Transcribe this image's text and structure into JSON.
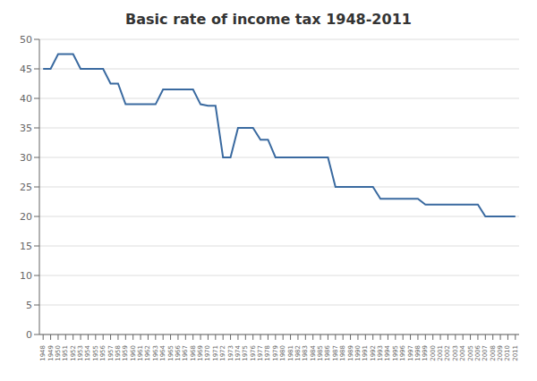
{
  "chart_data": {
    "type": "line",
    "title": "Basic rate of income tax 1948-2011",
    "x": [
      1948,
      1949,
      1950,
      1951,
      1952,
      1953,
      1954,
      1955,
      1956,
      1957,
      1958,
      1959,
      1960,
      1961,
      1962,
      1963,
      1964,
      1965,
      1966,
      1967,
      1968,
      1969,
      1970,
      1971,
      1972,
      1973,
      1974,
      1975,
      1976,
      1977,
      1978,
      1979,
      1980,
      1981,
      1982,
      1983,
      1984,
      1985,
      1986,
      1987,
      1988,
      1989,
      1990,
      1991,
      1992,
      1993,
      1994,
      1995,
      1996,
      1997,
      1998,
      1999,
      2000,
      2001,
      2002,
      2003,
      2004,
      2005,
      2006,
      2007,
      2008,
      2009,
      2010,
      2011
    ],
    "values": [
      45,
      45,
      47.5,
      47.5,
      47.5,
      45,
      45,
      45,
      45,
      42.5,
      42.5,
      39,
      39,
      39,
      39,
      39,
      41.5,
      41.5,
      41.5,
      41.5,
      41.5,
      39,
      38.75,
      38.75,
      30,
      30,
      35,
      35,
      35,
      33,
      33,
      30,
      30,
      30,
      30,
      30,
      30,
      30,
      30,
      25,
      25,
      25,
      25,
      25,
      25,
      23,
      23,
      23,
      23,
      23,
      23,
      22,
      22,
      22,
      22,
      22,
      22,
      22,
      22,
      20,
      20,
      20,
      20,
      20
    ],
    "color": "#3A6AA0",
    "xlim": [
      1947.5,
      2011.5
    ],
    "xticks": [
      1948,
      1949,
      1950,
      1951,
      1952,
      1953,
      1954,
      1955,
      1956,
      1957,
      1958,
      1959,
      1960,
      1961,
      1962,
      1963,
      1964,
      1965,
      1966,
      1967,
      1968,
      1969,
      1970,
      1971,
      1972,
      1973,
      1974,
      1975,
      1976,
      1977,
      1978,
      1979,
      1980,
      1981,
      1982,
      1983,
      1984,
      1985,
      1986,
      1987,
      1988,
      1989,
      1990,
      1991,
      1992,
      1993,
      1994,
      1995,
      1996,
      1997,
      1998,
      1999,
      2000,
      2001,
      2002,
      2003,
      2004,
      2005,
      2006,
      2007,
      2008,
      2009,
      2010,
      2011
    ],
    "ylim": [
      0,
      50
    ],
    "yticks": [
      0,
      5,
      10,
      15,
      20,
      25,
      30,
      35,
      40,
      45,
      50
    ],
    "grid": "y"
  }
}
